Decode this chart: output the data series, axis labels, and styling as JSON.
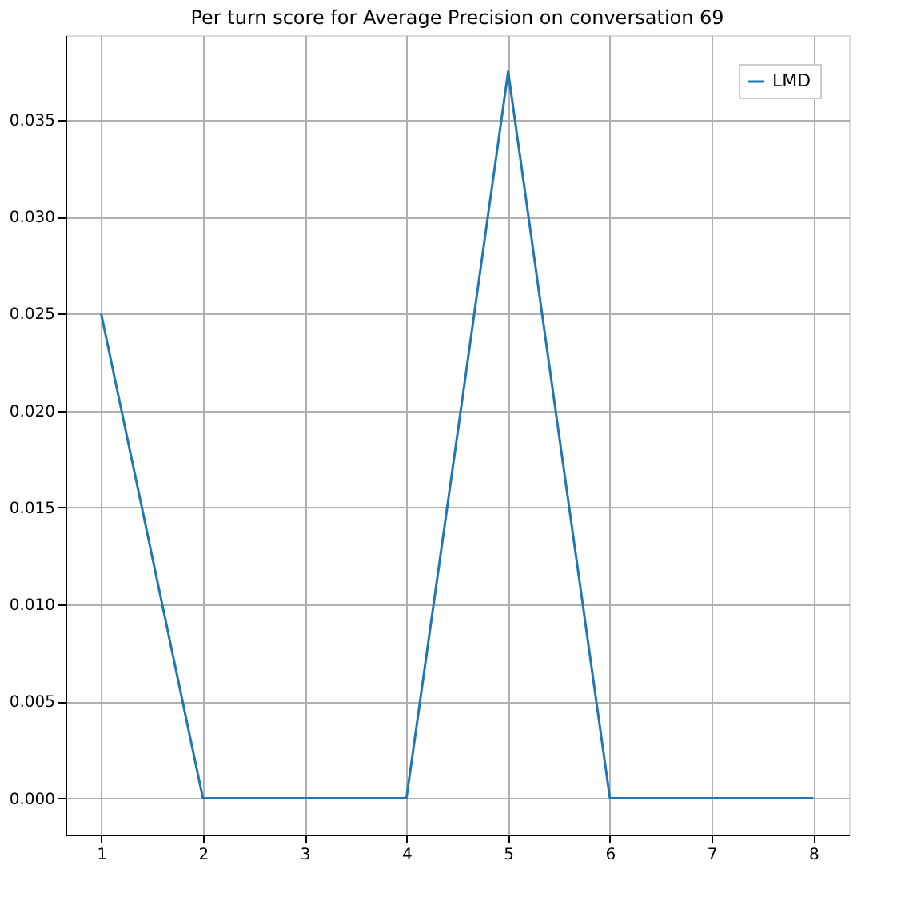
{
  "chart_data": {
    "type": "line",
    "title": "Per turn score for Average Precision on conversation 69",
    "x": [
      1,
      2,
      3,
      4,
      5,
      6,
      7,
      8
    ],
    "series": [
      {
        "name": "LMD",
        "color": "#1f77b4",
        "values": [
          0.025,
          0,
          0,
          0,
          0.0375,
          0,
          0,
          0
        ]
      }
    ],
    "xlim": [
      0.65,
      8.35
    ],
    "xticks": [
      1,
      2,
      3,
      4,
      5,
      6,
      7,
      8
    ],
    "ylim": [
      -0.001875,
      0.039375
    ],
    "yticks": [
      {
        "value": 0,
        "label": "0.000"
      },
      {
        "value": 0.005,
        "label": "0.005"
      },
      {
        "value": 0.01,
        "label": "0.010"
      },
      {
        "value": 0.015,
        "label": "0.015"
      },
      {
        "value": 0.02,
        "label": "0.020"
      },
      {
        "value": 0.025,
        "label": "0.025"
      },
      {
        "value": 0.03,
        "label": "0.030"
      },
      {
        "value": 0.035,
        "label": "0.035"
      }
    ],
    "grid": true,
    "legend": "top right",
    "marker": "none",
    "line_style": "solid"
  }
}
